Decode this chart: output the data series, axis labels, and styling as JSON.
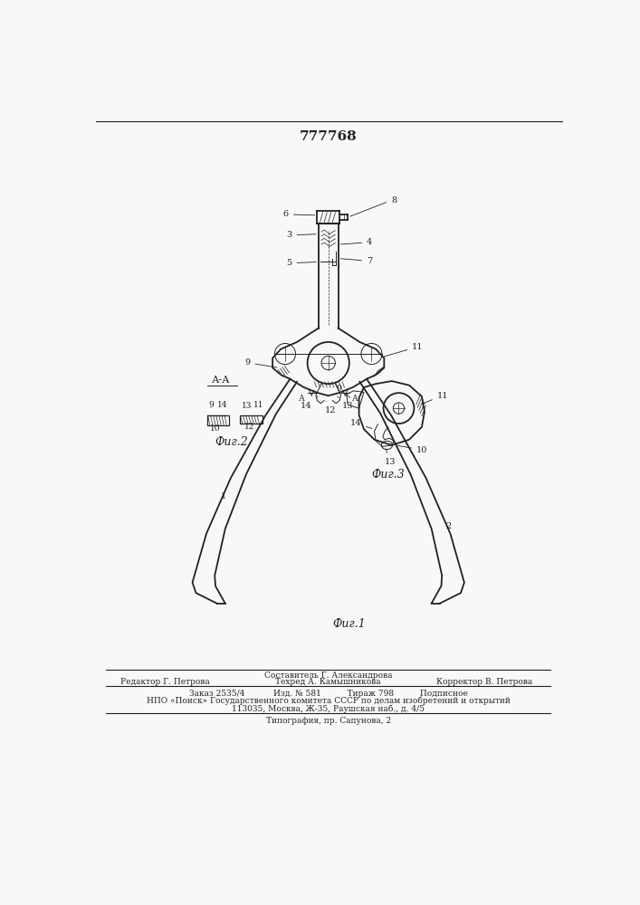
{
  "patent_number": "777768",
  "background_color": "#f8f8f6",
  "line_color": "#222222",
  "fig1_caption": "Фиг.1",
  "fig2_caption": "Фиг.2",
  "fig3_caption": "Фиг.3",
  "section_label": "А-А",
  "footer_line1": "Составитель Г. Александрова",
  "footer_line2_left": "Редактор Г. Петрова",
  "footer_line2_mid": "Техред А. Камышникова",
  "footer_line2_right": "Корректор В. Петрова",
  "footer_line3": "Заказ 2535/4           Изд. № 581          Тираж 798          Подписное",
  "footer_line4": "НПО «Поиск» Государственного комитета СССР по делам изобретений и открытий",
  "footer_line5": "113035, Москва, Ж-35, Раушская наб., д. 4/5",
  "footer_line6": "Типография, пр. Сапунова, 2"
}
